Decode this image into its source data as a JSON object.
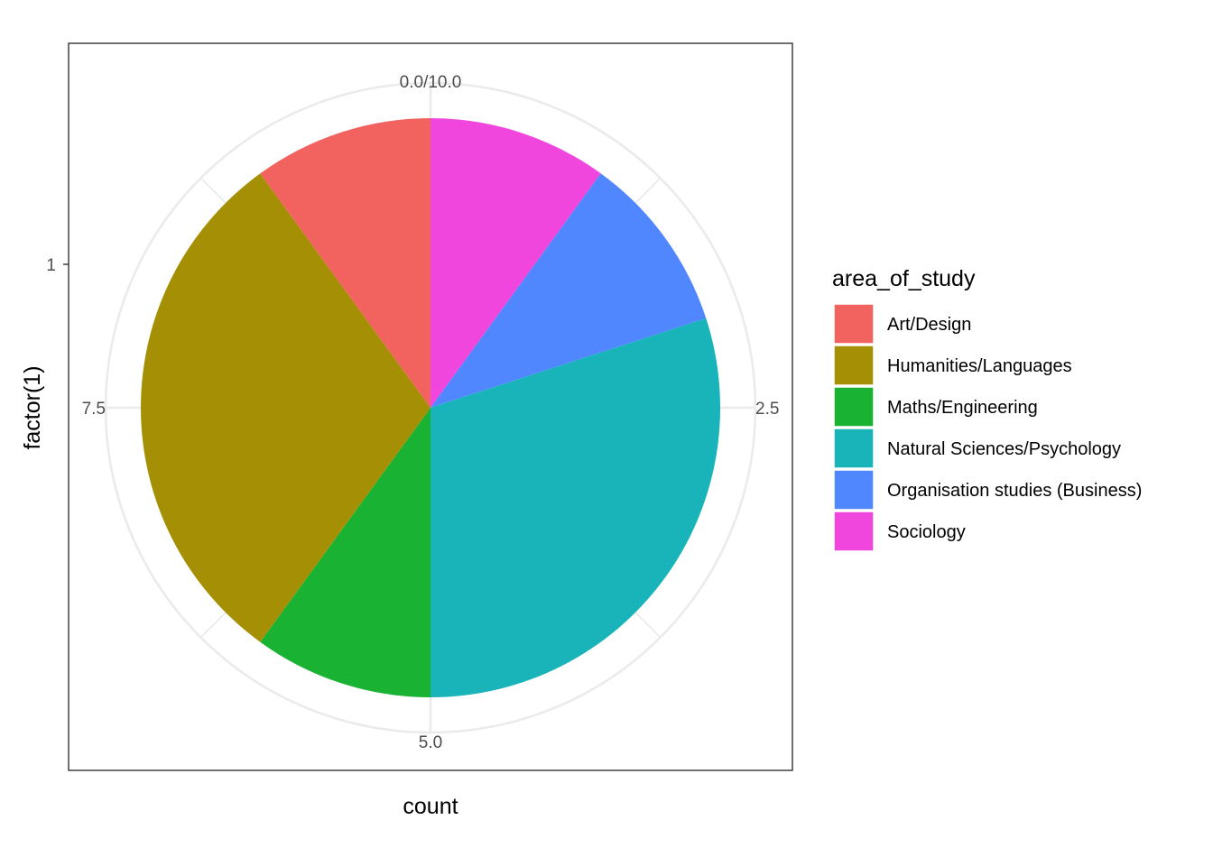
{
  "chart_data": {
    "type": "pie",
    "xlabel": "count",
    "ylabel": "factor(1)",
    "y_tick_labels": [
      "1"
    ],
    "theta_ticks": [
      {
        "value": 0,
        "label": "0.0/10.0"
      },
      {
        "value": 2.5,
        "label": "2.5"
      },
      {
        "value": 5.0,
        "label": "5.0"
      },
      {
        "value": 7.5,
        "label": "7.5"
      }
    ],
    "total": 10,
    "grid": true,
    "legend": {
      "title": "area_of_study",
      "position": "right"
    },
    "slices": [
      {
        "label": "Sociology",
        "value": 1,
        "color": "#F046DD"
      },
      {
        "label": "Organisation studies (Business)",
        "value": 1,
        "color": "#5087FF"
      },
      {
        "label": "Natural Sciences/Psychology",
        "value": 3,
        "color": "#19B4B9"
      },
      {
        "label": "Maths/Engineering",
        "value": 1,
        "color": "#19B232"
      },
      {
        "label": "Humanities/Languages",
        "value": 3,
        "color": "#A58F04"
      },
      {
        "label": "Art/Design",
        "value": 1,
        "color": "#F2625E"
      }
    ],
    "legend_order": [
      "Art/Design",
      "Humanities/Languages",
      "Maths/Engineering",
      "Natural Sciences/Psychology",
      "Organisation studies (Business)",
      "Sociology"
    ]
  }
}
